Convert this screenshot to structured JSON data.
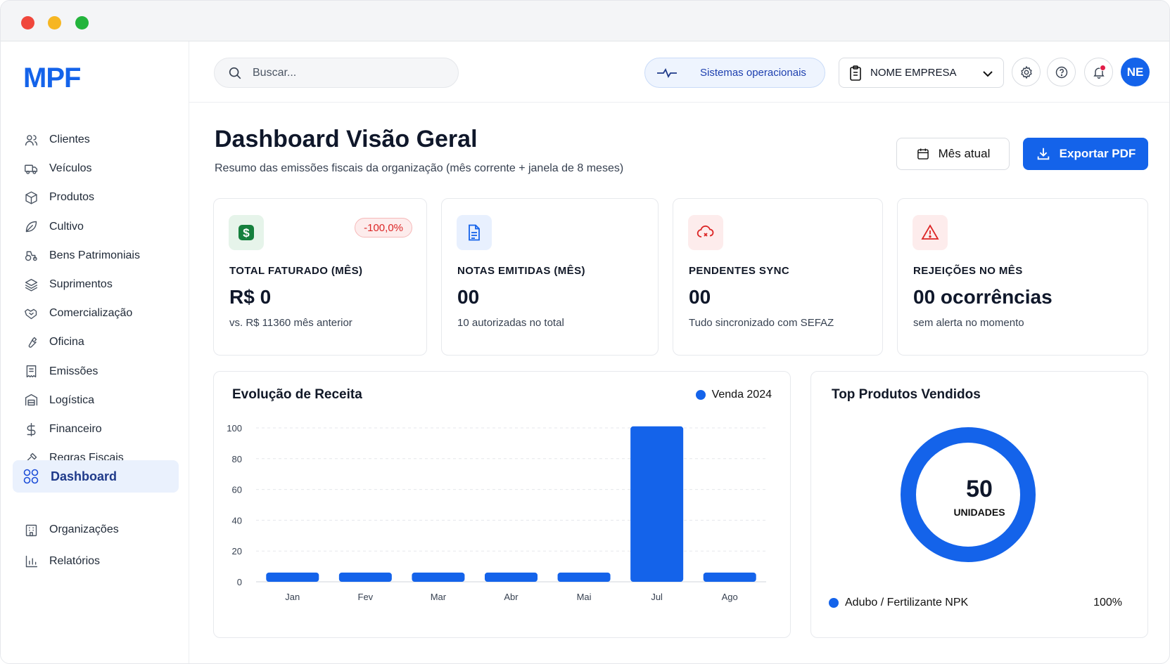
{
  "brand": {
    "logo_text": "MPF"
  },
  "sidebar": {
    "items": [
      {
        "label": "Clientes",
        "icon": "users-icon"
      },
      {
        "label": "Veículos",
        "icon": "truck-icon"
      },
      {
        "label": "Produtos",
        "icon": "box-icon"
      },
      {
        "label": "Cultivo",
        "icon": "leaf-icon"
      },
      {
        "label": "Bens Patrimoniais",
        "icon": "tractor-icon"
      },
      {
        "label": "Suprimentos",
        "icon": "layers-icon"
      },
      {
        "label": "Comercialização",
        "icon": "handshake-icon"
      },
      {
        "label": "Oficina",
        "icon": "wrench-icon"
      },
      {
        "label": "Emissões",
        "icon": "receipt-icon"
      },
      {
        "label": "Logística",
        "icon": "warehouse-icon"
      },
      {
        "label": "Financeiro",
        "icon": "dollar-icon"
      },
      {
        "label": "Regras Fiscais",
        "icon": "gavel-icon"
      }
    ],
    "active": {
      "label": "Dashboard",
      "icon": "grid-icon"
    },
    "bottom_items": [
      {
        "label": "Organizações",
        "icon": "building-icon"
      },
      {
        "label": "Relatórios",
        "icon": "bar-chart-icon"
      }
    ]
  },
  "topbar": {
    "search_placeholder": "Buscar...",
    "status_label": "Sistemas operacionais",
    "company_label": "NOME EMPRESA",
    "avatar_initials": "NE"
  },
  "header": {
    "title": "Dashboard Visão Geral",
    "subtitle": "Resumo das emissões fiscais da organização (mês corrente + janela de 8 meses)",
    "month_button": "Mês atual",
    "export_button": "Exportar PDF"
  },
  "kpis": [
    {
      "label": "TOTAL FATURADO (MÊS)",
      "value": "R$ 0",
      "sub": "vs. R$ 11360 mês anterior",
      "badge": "-100,0%",
      "icon": "dollar-icon",
      "icon_bg": "#e6f4ea",
      "icon_color": "#15803d"
    },
    {
      "label": "NOTAS EMITIDAS (MÊS)",
      "value": "00",
      "sub": "10 autorizadas no total",
      "icon": "document-icon",
      "icon_bg": "#e8f0fe",
      "icon_color": "#1463ea"
    },
    {
      "label": "PENDENTES SYNC",
      "value": "00",
      "sub": "Tudo sincronizado com SEFAZ",
      "icon": "cloud-off-icon",
      "icon_bg": "#fdecec",
      "icon_color": "#dc2626"
    },
    {
      "label": "REJEIÇÕES NO MÊS",
      "value": "00 ocorrências",
      "sub": "sem alerta no momento",
      "icon": "warning-icon",
      "icon_bg": "#fdecec",
      "icon_color": "#dc2626"
    }
  ],
  "revenue_panel": {
    "title": "Evolução de Receita"
  },
  "products_panel": {
    "title": "Top Produtos Vendidos"
  },
  "chart_data": [
    {
      "type": "bar",
      "title": "Evolução de Receita",
      "categories": [
        "Jan",
        "Fev",
        "Mar",
        "Abr",
        "Mai",
        "Jul",
        "Ago"
      ],
      "series": [
        {
          "name": "Venda 2024",
          "values": [
            6,
            6,
            6,
            6,
            6,
            101,
            6
          ]
        }
      ],
      "ylim": [
        0,
        100
      ],
      "yticks": [
        0,
        20,
        40,
        60,
        80,
        100
      ],
      "grid": true,
      "legend": "top-right",
      "color": "#1463ea"
    },
    {
      "type": "pie",
      "title": "Top Produtos Vendidos",
      "center_value": "50",
      "center_label": "UNIDADES",
      "slices": [
        {
          "label": "Adubo / Fertilizante NPK",
          "value": 100,
          "display": "100%"
        }
      ],
      "legend": "bottom",
      "color": "#1463ea"
    }
  ]
}
